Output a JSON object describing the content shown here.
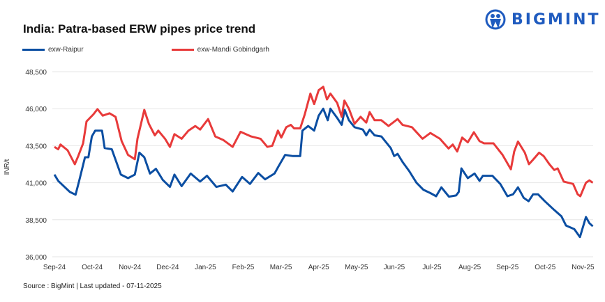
{
  "title": "India: Patra-based ERW pipes price trend",
  "logo": {
    "text": "BIGMINT",
    "color": "#1f5bbf"
  },
  "source": "Source : BigMint | Last updated - 07-11-2025",
  "chart_data": {
    "type": "line",
    "title": "India: Patra-based ERW pipes price trend",
    "xlabel": "",
    "ylabel": "INR/t",
    "ylim": [
      36000,
      48500
    ],
    "yticks": [
      36000,
      38500,
      41000,
      43500,
      46000,
      48500
    ],
    "ytick_labels": [
      "36,000",
      "38,500",
      "41,000",
      "43,500",
      "46,000",
      "48,500"
    ],
    "xlim": [
      0,
      14.26
    ],
    "x_unit": "months since Sep-24",
    "xtick_labels": [
      "Sep-24",
      "Oct-24",
      "Nov-24",
      "Dec-24",
      "Jan-25",
      "Feb-25",
      "Mar-25",
      "Apr-25",
      "May-25",
      "Jun-25",
      "Jul-25",
      "Aug-25",
      "Sep-25",
      "Oct-25",
      "Nov-25"
    ],
    "grid": true,
    "legend_position": "top-left",
    "series": [
      {
        "name": "exw-Raipur",
        "color": "#0b4ea2",
        "points": [
          [
            0,
            41550
          ],
          [
            0.1,
            41125
          ],
          [
            0.41,
            40375
          ],
          [
            0.56,
            40190
          ],
          [
            0.65,
            41080
          ],
          [
            0.81,
            42720
          ],
          [
            0.9,
            42720
          ],
          [
            0.99,
            44125
          ],
          [
            1.08,
            44520
          ],
          [
            1.26,
            44520
          ],
          [
            1.33,
            43340
          ],
          [
            1.52,
            43260
          ],
          [
            1.76,
            41550
          ],
          [
            1.95,
            41310
          ],
          [
            2.13,
            41550
          ],
          [
            2.25,
            43030
          ],
          [
            2.38,
            42720
          ],
          [
            2.53,
            41620
          ],
          [
            2.69,
            41940
          ],
          [
            2.87,
            41190
          ],
          [
            3.06,
            40720
          ],
          [
            3.18,
            41550
          ],
          [
            3.37,
            40770
          ],
          [
            3.61,
            41620
          ],
          [
            3.86,
            41080
          ],
          [
            4.04,
            41470
          ],
          [
            4.29,
            40720
          ],
          [
            4.54,
            40870
          ],
          [
            4.72,
            40410
          ],
          [
            4.97,
            41390
          ],
          [
            5.18,
            40920
          ],
          [
            5.4,
            41660
          ],
          [
            5.58,
            41230
          ],
          [
            5.83,
            41620
          ],
          [
            5.95,
            42170
          ],
          [
            6.11,
            42880
          ],
          [
            6.32,
            42800
          ],
          [
            6.51,
            42800
          ],
          [
            6.57,
            44520
          ],
          [
            6.72,
            44830
          ],
          [
            6.88,
            44520
          ],
          [
            7.0,
            45530
          ],
          [
            7.12,
            46000
          ],
          [
            7.24,
            45220
          ],
          [
            7.31,
            46000
          ],
          [
            7.49,
            45375
          ],
          [
            7.61,
            44910
          ],
          [
            7.69,
            45920
          ],
          [
            7.8,
            45220
          ],
          [
            7.95,
            44750
          ],
          [
            8.17,
            44590
          ],
          [
            8.26,
            44200
          ],
          [
            8.35,
            44590
          ],
          [
            8.48,
            44200
          ],
          [
            8.66,
            44125
          ],
          [
            8.91,
            43340
          ],
          [
            9.0,
            42800
          ],
          [
            9.09,
            42950
          ],
          [
            9.22,
            42410
          ],
          [
            9.4,
            41780
          ],
          [
            9.59,
            41000
          ],
          [
            9.77,
            40530
          ],
          [
            9.96,
            40300
          ],
          [
            10.11,
            40090
          ],
          [
            10.25,
            40690
          ],
          [
            10.45,
            40060
          ],
          [
            10.64,
            40140
          ],
          [
            10.71,
            40380
          ],
          [
            10.78,
            41970
          ],
          [
            10.95,
            41310
          ],
          [
            11.13,
            41620
          ],
          [
            11.26,
            41125
          ],
          [
            11.35,
            41470
          ],
          [
            11.6,
            41470
          ],
          [
            11.81,
            40920
          ],
          [
            12.0,
            40090
          ],
          [
            12.15,
            40220
          ],
          [
            12.28,
            40690
          ],
          [
            12.43,
            39980
          ],
          [
            12.56,
            39750
          ],
          [
            12.68,
            40220
          ],
          [
            12.81,
            40220
          ],
          [
            12.99,
            39750
          ],
          [
            13.24,
            39160
          ],
          [
            13.43,
            38730
          ],
          [
            13.55,
            38110
          ],
          [
            13.77,
            37870
          ],
          [
            13.92,
            37330
          ],
          [
            14.08,
            38690
          ],
          [
            14.17,
            38270
          ],
          [
            14.26,
            38060
          ]
        ]
      },
      {
        "name": "exw-Mandi Gobindgarh",
        "color": "#e83a3a",
        "points": [
          [
            0,
            43420
          ],
          [
            0.1,
            43260
          ],
          [
            0.16,
            43580
          ],
          [
            0.35,
            43190
          ],
          [
            0.54,
            42250
          ],
          [
            0.63,
            42800
          ],
          [
            0.76,
            43660
          ],
          [
            0.85,
            45140
          ],
          [
            1.03,
            45610
          ],
          [
            1.14,
            45970
          ],
          [
            1.28,
            45530
          ],
          [
            1.46,
            45690
          ],
          [
            1.62,
            45450
          ],
          [
            1.78,
            43810
          ],
          [
            1.95,
            42880
          ],
          [
            2.13,
            42590
          ],
          [
            2.2,
            43970
          ],
          [
            2.38,
            45920
          ],
          [
            2.5,
            44980
          ],
          [
            2.66,
            44200
          ],
          [
            2.75,
            44520
          ],
          [
            2.93,
            43970
          ],
          [
            3.06,
            43420
          ],
          [
            3.18,
            44280
          ],
          [
            3.37,
            43970
          ],
          [
            3.55,
            44520
          ],
          [
            3.73,
            44830
          ],
          [
            3.86,
            44590
          ],
          [
            4.07,
            45300
          ],
          [
            4.26,
            44125
          ],
          [
            4.47,
            43890
          ],
          [
            4.72,
            43420
          ],
          [
            4.93,
            44440
          ],
          [
            5.21,
            44125
          ],
          [
            5.46,
            43970
          ],
          [
            5.64,
            43420
          ],
          [
            5.77,
            43500
          ],
          [
            5.92,
            44520
          ],
          [
            6.01,
            44050
          ],
          [
            6.14,
            44750
          ],
          [
            6.26,
            44910
          ],
          [
            6.35,
            44670
          ],
          [
            6.51,
            44670
          ],
          [
            6.63,
            45610
          ],
          [
            6.78,
            47020
          ],
          [
            6.88,
            46310
          ],
          [
            7.0,
            47250
          ],
          [
            7.12,
            47480
          ],
          [
            7.22,
            46625
          ],
          [
            7.31,
            47020
          ],
          [
            7.49,
            46390
          ],
          [
            7.61,
            45450
          ],
          [
            7.68,
            46550
          ],
          [
            7.8,
            46000
          ],
          [
            7.95,
            44980
          ],
          [
            8.11,
            45450
          ],
          [
            8.26,
            45060
          ],
          [
            8.35,
            45770
          ],
          [
            8.48,
            45220
          ],
          [
            8.66,
            45220
          ],
          [
            8.85,
            44830
          ],
          [
            9.09,
            45300
          ],
          [
            9.22,
            44910
          ],
          [
            9.47,
            44750
          ],
          [
            9.75,
            43970
          ],
          [
            9.96,
            44360
          ],
          [
            10.21,
            43970
          ],
          [
            10.44,
            43310
          ],
          [
            10.55,
            43580
          ],
          [
            10.67,
            43110
          ],
          [
            10.8,
            44050
          ],
          [
            10.95,
            43730
          ],
          [
            11.11,
            44410
          ],
          [
            11.26,
            43810
          ],
          [
            11.38,
            43660
          ],
          [
            11.63,
            43660
          ],
          [
            11.87,
            42880
          ],
          [
            12.09,
            41910
          ],
          [
            12.18,
            43110
          ],
          [
            12.28,
            43780
          ],
          [
            12.46,
            43030
          ],
          [
            12.57,
            42250
          ],
          [
            12.68,
            42560
          ],
          [
            12.84,
            43030
          ],
          [
            12.96,
            42800
          ],
          [
            13.11,
            42250
          ],
          [
            13.24,
            41860
          ],
          [
            13.33,
            41970
          ],
          [
            13.49,
            41080
          ],
          [
            13.74,
            40920
          ],
          [
            13.86,
            40220
          ],
          [
            13.93,
            40090
          ],
          [
            14.08,
            41000
          ],
          [
            14.17,
            41160
          ],
          [
            14.26,
            41000
          ]
        ]
      }
    ]
  }
}
